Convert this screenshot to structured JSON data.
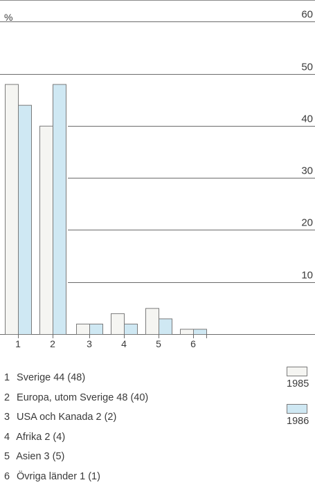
{
  "chart_data": {
    "type": "bar",
    "unit_label": "%",
    "categories": [
      "1",
      "2",
      "3",
      "4",
      "5",
      "6"
    ],
    "series": [
      {
        "name": "1985",
        "values": [
          48,
          40,
          2,
          4,
          5,
          1
        ],
        "color": "#f5f5f2"
      },
      {
        "name": "1986",
        "values": [
          44,
          48,
          2,
          2,
          3,
          1
        ],
        "color": "#cfe8f3"
      }
    ],
    "yticks": [
      10,
      20,
      30,
      40,
      50,
      60
    ],
    "ylim": [
      0,
      60
    ],
    "grid": true,
    "legend_position": "bottom-right"
  },
  "legend": {
    "items": [
      {
        "num": "1",
        "text": "Sverige 44 (48)"
      },
      {
        "num": "2",
        "text": "Europa, utom Sverige 48 (40)"
      },
      {
        "num": "3",
        "text": "USA och Kanada 2 (2)"
      },
      {
        "num": "4",
        "text": "Afrika 2 (4)"
      },
      {
        "num": "5",
        "text": "Asien 3 (5)"
      },
      {
        "num": "6",
        "text": "Övriga länder 1 (1)"
      }
    ],
    "years": [
      {
        "label": "1985",
        "color": "#f5f5f2"
      },
      {
        "label": "1986",
        "color": "#cfe8f3"
      }
    ]
  }
}
